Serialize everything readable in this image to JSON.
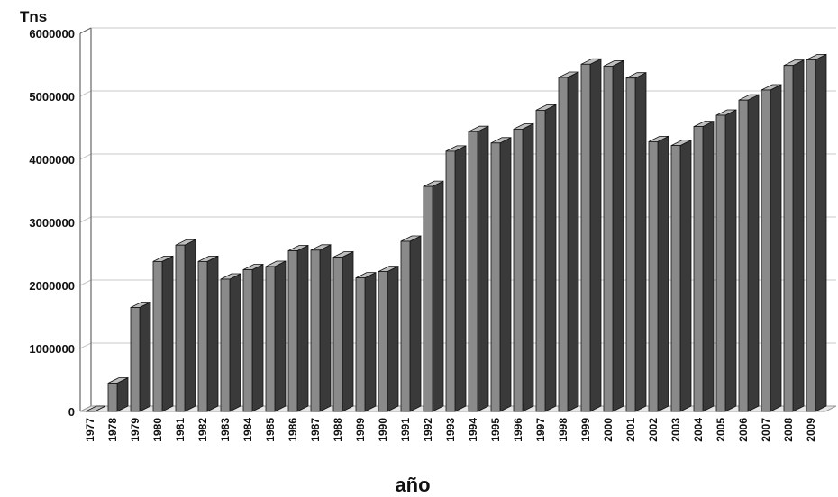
{
  "chart_data": {
    "type": "bar",
    "title": "",
    "ylabel": "Tns",
    "xlabel": "año",
    "ylim": [
      0,
      6000000
    ],
    "yticks": [
      "0",
      "1000000",
      "2000000",
      "3000000",
      "4000000",
      "5000000",
      "6000000"
    ],
    "grid": true,
    "legend": "none",
    "colors": {
      "bar_face": "#8a8a8a",
      "bar_side": "#3a3a3a",
      "bar_top": "#bdbdbd",
      "grid": "#c8c8c8",
      "floor": "#9a9a9a"
    },
    "categories": [
      "1977",
      "1978",
      "1979",
      "1980",
      "1981",
      "1982",
      "1983",
      "1984",
      "1985",
      "1986",
      "1987",
      "1988",
      "1989",
      "1990",
      "1991",
      "1992",
      "1993",
      "1994",
      "1995",
      "1996",
      "1997",
      "1998",
      "1999",
      "2000",
      "2001",
      "2002",
      "2003",
      "2004",
      "2005",
      "2006",
      "2007",
      "2008",
      "2009"
    ],
    "values": [
      0,
      450000,
      1650000,
      2380000,
      2640000,
      2380000,
      2100000,
      2250000,
      2300000,
      2550000,
      2560000,
      2450000,
      2120000,
      2220000,
      2700000,
      3570000,
      4130000,
      4440000,
      4260000,
      4480000,
      4780000,
      5300000,
      5510000,
      5480000,
      5290000,
      4280000,
      4220000,
      4520000,
      4700000,
      4940000,
      5100000,
      5490000,
      5580000
    ]
  }
}
